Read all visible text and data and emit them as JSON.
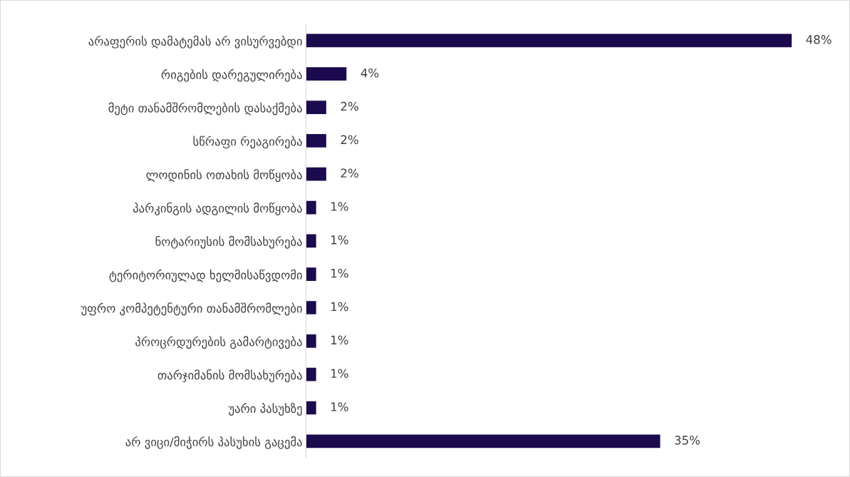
{
  "chart_data": {
    "type": "bar",
    "orientation": "horizontal",
    "tick_labels": "y",
    "categories": [
      "არაფერის დამატემას არ ვისურვებდი",
      "რიგების დარეგულირება",
      "მეტი თანამშრომლების დასაქმება",
      "სწრაფი რეაგირება",
      "ლოდინის ოთახის მოწყობა",
      "პარკინგის ადგილის მოწყობა",
      "ნოტარიუსის მომსახურება",
      "ტერიტორიულად ხელმისაწვდომი",
      "უფრო კომპეტენტური თანამშრომლები",
      "პროცრდურების გამარტივება",
      "თარჯიმანის მომსახურება",
      "უარი პასუხზე",
      "არ ვიცი/მიჭირს პასუხის გაცემა"
    ],
    "values": [
      48,
      4,
      2,
      2,
      2,
      1,
      1,
      1,
      1,
      1,
      1,
      1,
      35
    ],
    "value_labels": [
      "48%",
      "4%",
      "2%",
      "2%",
      "2%",
      "1%",
      "1%",
      "1%",
      "1%",
      "1%",
      "1%",
      "1%",
      "35%"
    ],
    "color": "#1c0a4e",
    "grid": false,
    "legend": false
  }
}
